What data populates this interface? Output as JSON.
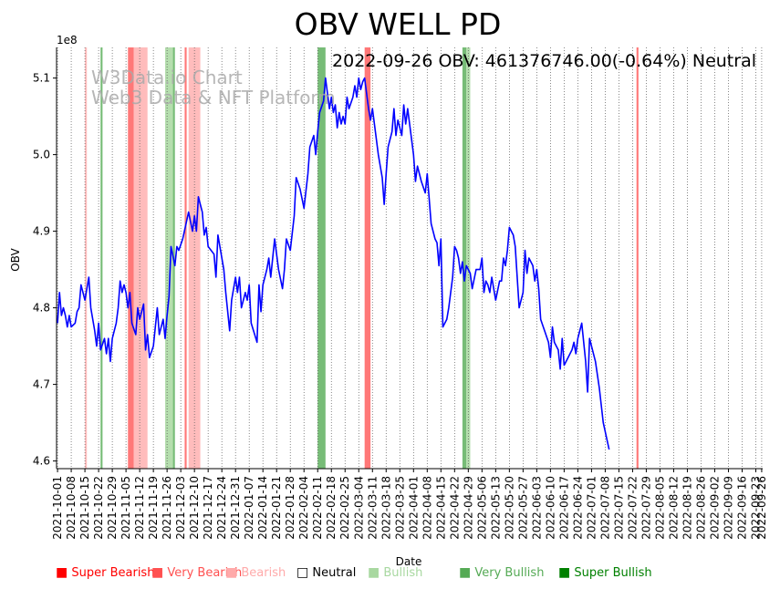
{
  "chart_data": {
    "type": "line",
    "title": "OBV WELL PD",
    "annotation": "2022-09-26 OBV: 461376746.00(-0.64%) Neutral",
    "watermark": [
      "W3Data.io Chart",
      "Web3 Data & NFT Platform"
    ],
    "xlabel": "Date",
    "ylabel": "OBV",
    "y_multiplier_label": "1e8",
    "y_unit": 100000000,
    "ylim": [
      4.59,
      5.14
    ],
    "yticks": [
      4.6,
      4.7,
      4.8,
      4.9,
      5.0,
      5.1
    ],
    "ytick_labels": [
      "4.6",
      "4.7",
      "4.8",
      "4.9",
      "5.0",
      "5.1"
    ],
    "x_start": "2021-10-01",
    "x_end": "2022-09-26",
    "xticks": [
      "2021-10-01",
      "2021-10-08",
      "2021-10-15",
      "2021-10-22",
      "2021-10-29",
      "2021-11-05",
      "2021-11-12",
      "2021-11-19",
      "2021-11-26",
      "2021-12-03",
      "2021-12-10",
      "2021-12-17",
      "2021-12-24",
      "2021-12-31",
      "2022-01-07",
      "2022-01-14",
      "2022-01-21",
      "2022-01-28",
      "2022-02-04",
      "2022-02-11",
      "2022-02-18",
      "2022-02-25",
      "2022-03-04",
      "2022-03-11",
      "2022-03-18",
      "2022-03-25",
      "2022-04-01",
      "2022-04-08",
      "2022-04-15",
      "2022-04-22",
      "2022-04-29",
      "2022-05-06",
      "2022-05-13",
      "2022-05-20",
      "2022-05-27",
      "2022-06-03",
      "2022-06-10",
      "2022-06-17",
      "2022-06-24",
      "2022-07-01",
      "2022-07-08",
      "2022-07-15",
      "2022-07-22",
      "2022-07-29",
      "2022-08-05",
      "2022-08-12",
      "2022-08-19",
      "2022-08-26",
      "2022-09-02",
      "2022-09-09",
      "2022-09-16",
      "2022-09-23",
      "2022-09-26"
    ],
    "grid": "vertical-dotted",
    "line_color": "#0000ff",
    "series": [
      {
        "points": [
          [
            "2021-10-01",
            4.78
          ],
          [
            "2021-10-02",
            4.82
          ],
          [
            "2021-10-03",
            4.79
          ],
          [
            "2021-10-04",
            4.8
          ],
          [
            "2021-10-05",
            4.79
          ],
          [
            "2021-10-06",
            4.775
          ],
          [
            "2021-10-07",
            4.79
          ],
          [
            "2021-10-08",
            4.775
          ],
          [
            "2021-10-10",
            4.78
          ],
          [
            "2021-10-11",
            4.795
          ],
          [
            "2021-10-12",
            4.8
          ],
          [
            "2021-10-13",
            4.83
          ],
          [
            "2021-10-15",
            4.81
          ],
          [
            "2021-10-17",
            4.84
          ],
          [
            "2021-10-18",
            4.8
          ],
          [
            "2021-10-20",
            4.77
          ],
          [
            "2021-10-21",
            4.75
          ],
          [
            "2021-10-22",
            4.78
          ],
          [
            "2021-10-23",
            4.745
          ],
          [
            "2021-10-25",
            4.76
          ],
          [
            "2021-10-26",
            4.74
          ],
          [
            "2021-10-27",
            4.76
          ],
          [
            "2021-10-28",
            4.73
          ],
          [
            "2021-10-29",
            4.76
          ],
          [
            "2021-10-31",
            4.78
          ],
          [
            "2021-11-01",
            4.8
          ],
          [
            "2021-11-02",
            4.835
          ],
          [
            "2021-11-03",
            4.82
          ],
          [
            "2021-11-04",
            4.83
          ],
          [
            "2021-11-05",
            4.82
          ],
          [
            "2021-11-06",
            4.8
          ],
          [
            "2021-11-07",
            4.82
          ],
          [
            "2021-11-08",
            4.78
          ],
          [
            "2021-11-10",
            4.765
          ],
          [
            "2021-11-11",
            4.8
          ],
          [
            "2021-11-12",
            4.785
          ],
          [
            "2021-11-14",
            4.805
          ],
          [
            "2021-11-15",
            4.745
          ],
          [
            "2021-11-16",
            4.765
          ],
          [
            "2021-11-17",
            4.735
          ],
          [
            "2021-11-19",
            4.75
          ],
          [
            "2021-11-21",
            4.8
          ],
          [
            "2021-11-22",
            4.765
          ],
          [
            "2021-11-24",
            4.785
          ],
          [
            "2021-11-25",
            4.76
          ],
          [
            "2021-11-26",
            4.79
          ],
          [
            "2021-11-27",
            4.815
          ],
          [
            "2021-11-28",
            4.88
          ],
          [
            "2021-11-30",
            4.855
          ],
          [
            "2021-12-01",
            4.88
          ],
          [
            "2021-12-02",
            4.875
          ],
          [
            "2021-12-04",
            4.89
          ],
          [
            "2021-12-07",
            4.925
          ],
          [
            "2021-12-09",
            4.9
          ],
          [
            "2021-12-10",
            4.92
          ],
          [
            "2021-12-11",
            4.9
          ],
          [
            "2021-12-12",
            4.945
          ],
          [
            "2021-12-14",
            4.925
          ],
          [
            "2021-12-15",
            4.895
          ],
          [
            "2021-12-16",
            4.905
          ],
          [
            "2021-12-17",
            4.88
          ],
          [
            "2021-12-20",
            4.87
          ],
          [
            "2021-12-21",
            4.84
          ],
          [
            "2021-12-22",
            4.895
          ],
          [
            "2021-12-25",
            4.85
          ],
          [
            "2021-12-26",
            4.82
          ],
          [
            "2021-12-28",
            4.77
          ],
          [
            "2021-12-29",
            4.81
          ],
          [
            "2021-12-31",
            4.84
          ],
          [
            "2022-01-01",
            4.82
          ],
          [
            "2022-01-02",
            4.84
          ],
          [
            "2022-01-03",
            4.8
          ],
          [
            "2022-01-05",
            4.82
          ],
          [
            "2022-01-06",
            4.81
          ],
          [
            "2022-01-07",
            4.83
          ],
          [
            "2022-01-08",
            4.78
          ],
          [
            "2022-01-11",
            4.755
          ],
          [
            "2022-01-12",
            4.83
          ],
          [
            "2022-01-13",
            4.795
          ],
          [
            "2022-01-14",
            4.83
          ],
          [
            "2022-01-16",
            4.85
          ],
          [
            "2022-01-17",
            4.865
          ],
          [
            "2022-01-18",
            4.84
          ],
          [
            "2022-01-20",
            4.89
          ],
          [
            "2022-01-22",
            4.85
          ],
          [
            "2022-01-24",
            4.825
          ],
          [
            "2022-01-25",
            4.85
          ],
          [
            "2022-01-26",
            4.89
          ],
          [
            "2022-01-28",
            4.875
          ],
          [
            "2022-01-30",
            4.92
          ],
          [
            "2022-01-31",
            4.97
          ],
          [
            "2022-02-02",
            4.955
          ],
          [
            "2022-02-04",
            4.93
          ],
          [
            "2022-02-06",
            4.975
          ],
          [
            "2022-02-07",
            5.01
          ],
          [
            "2022-02-09",
            5.025
          ],
          [
            "2022-02-10",
            5.0
          ],
          [
            "2022-02-11",
            5.03
          ],
          [
            "2022-02-12",
            5.055
          ],
          [
            "2022-02-14",
            5.07
          ],
          [
            "2022-02-15",
            5.1
          ],
          [
            "2022-02-16",
            5.08
          ],
          [
            "2022-02-17",
            5.06
          ],
          [
            "2022-02-18",
            5.075
          ],
          [
            "2022-02-19",
            5.055
          ],
          [
            "2022-02-20",
            5.065
          ],
          [
            "2022-02-21",
            5.035
          ],
          [
            "2022-02-22",
            5.055
          ],
          [
            "2022-02-23",
            5.04
          ],
          [
            "2022-02-24",
            5.05
          ],
          [
            "2022-02-25",
            5.04
          ],
          [
            "2022-02-26",
            5.075
          ],
          [
            "2022-02-27",
            5.06
          ],
          [
            "2022-03-01",
            5.075
          ],
          [
            "2022-03-02",
            5.09
          ],
          [
            "2022-03-03",
            5.075
          ],
          [
            "2022-03-04",
            5.1
          ],
          [
            "2022-03-05",
            5.085
          ],
          [
            "2022-03-06",
            5.095
          ],
          [
            "2022-03-07",
            5.1
          ],
          [
            "2022-03-08",
            5.08
          ],
          [
            "2022-03-09",
            5.06
          ],
          [
            "2022-03-10",
            5.045
          ],
          [
            "2022-03-11",
            5.06
          ],
          [
            "2022-03-12",
            5.04
          ],
          [
            "2022-03-14",
            5.0
          ],
          [
            "2022-03-15",
            4.985
          ],
          [
            "2022-03-16",
            4.97
          ],
          [
            "2022-03-17",
            4.935
          ],
          [
            "2022-03-18",
            4.975
          ],
          [
            "2022-03-19",
            5.01
          ],
          [
            "2022-03-20",
            5.02
          ],
          [
            "2022-03-21",
            5.03
          ],
          [
            "2022-03-22",
            5.06
          ],
          [
            "2022-03-23",
            5.025
          ],
          [
            "2022-03-24",
            5.045
          ],
          [
            "2022-03-26",
            5.025
          ],
          [
            "2022-03-27",
            5.065
          ],
          [
            "2022-03-28",
            5.04
          ],
          [
            "2022-03-29",
            5.06
          ],
          [
            "2022-04-01",
            5.0
          ],
          [
            "2022-04-02",
            4.965
          ],
          [
            "2022-04-03",
            4.985
          ],
          [
            "2022-04-05",
            4.965
          ],
          [
            "2022-04-07",
            4.95
          ],
          [
            "2022-04-08",
            4.975
          ],
          [
            "2022-04-10",
            4.91
          ],
          [
            "2022-04-12",
            4.89
          ],
          [
            "2022-04-13",
            4.885
          ],
          [
            "2022-04-14",
            4.855
          ],
          [
            "2022-04-15",
            4.89
          ],
          [
            "2022-04-16",
            4.775
          ],
          [
            "2022-04-18",
            4.785
          ],
          [
            "2022-04-19",
            4.8
          ],
          [
            "2022-04-21",
            4.84
          ],
          [
            "2022-04-22",
            4.88
          ],
          [
            "2022-04-23",
            4.875
          ],
          [
            "2022-04-24",
            4.865
          ],
          [
            "2022-04-25",
            4.845
          ],
          [
            "2022-04-26",
            4.86
          ],
          [
            "2022-04-27",
            4.835
          ],
          [
            "2022-04-28",
            4.855
          ],
          [
            "2022-04-30",
            4.845
          ],
          [
            "2022-05-01",
            4.825
          ],
          [
            "2022-05-03",
            4.85
          ],
          [
            "2022-05-04",
            4.85
          ],
          [
            "2022-05-05",
            4.85
          ],
          [
            "2022-05-06",
            4.865
          ],
          [
            "2022-05-07",
            4.82
          ],
          [
            "2022-05-08",
            4.835
          ],
          [
            "2022-05-09",
            4.83
          ],
          [
            "2022-05-10",
            4.82
          ],
          [
            "2022-05-11",
            4.84
          ],
          [
            "2022-05-12",
            4.825
          ],
          [
            "2022-05-13",
            4.81
          ],
          [
            "2022-05-15",
            4.835
          ],
          [
            "2022-05-16",
            4.835
          ],
          [
            "2022-05-17",
            4.865
          ],
          [
            "2022-05-18",
            4.855
          ],
          [
            "2022-05-19",
            4.875
          ],
          [
            "2022-05-20",
            4.905
          ],
          [
            "2022-05-22",
            4.895
          ],
          [
            "2022-05-23",
            4.88
          ],
          [
            "2022-05-25",
            4.8
          ],
          [
            "2022-05-26",
            4.81
          ],
          [
            "2022-05-27",
            4.82
          ],
          [
            "2022-05-28",
            4.875
          ],
          [
            "2022-05-29",
            4.845
          ],
          [
            "2022-05-30",
            4.865
          ],
          [
            "2022-06-01",
            4.855
          ],
          [
            "2022-06-02",
            4.835
          ],
          [
            "2022-06-03",
            4.85
          ],
          [
            "2022-06-04",
            4.825
          ],
          [
            "2022-06-05",
            4.785
          ],
          [
            "2022-06-07",
            4.77
          ],
          [
            "2022-06-09",
            4.755
          ],
          [
            "2022-06-10",
            4.735
          ],
          [
            "2022-06-11",
            4.775
          ],
          [
            "2022-06-12",
            4.755
          ],
          [
            "2022-06-14",
            4.745
          ],
          [
            "2022-06-15",
            4.72
          ],
          [
            "2022-06-16",
            4.76
          ],
          [
            "2022-06-17",
            4.725
          ],
          [
            "2022-06-19",
            4.735
          ],
          [
            "2022-06-21",
            4.745
          ],
          [
            "2022-06-22",
            4.755
          ],
          [
            "2022-06-23",
            4.74
          ],
          [
            "2022-06-24",
            4.76
          ],
          [
            "2022-06-26",
            4.78
          ],
          [
            "2022-06-28",
            4.73
          ],
          [
            "2022-06-29",
            4.69
          ],
          [
            "2022-06-30",
            4.76
          ],
          [
            "2022-07-03",
            4.73
          ],
          [
            "2022-07-05",
            4.695
          ],
          [
            "2022-07-07",
            4.65
          ],
          [
            "2022-07-10",
            4.615
          ]
        ]
      }
    ],
    "signal_bands": [
      {
        "start": "2021-10-15",
        "end": "2021-10-16",
        "signal": "Bearish"
      },
      {
        "start": "2021-10-23",
        "end": "2021-10-24",
        "signal": "Very Bullish"
      },
      {
        "start": "2021-11-06",
        "end": "2021-11-09",
        "signal": "Very Bearish"
      },
      {
        "start": "2021-11-09",
        "end": "2021-11-16",
        "signal": "Bearish"
      },
      {
        "start": "2021-11-25",
        "end": "2021-11-29",
        "signal": "Bullish"
      },
      {
        "start": "2021-11-29",
        "end": "2021-11-30",
        "signal": "Very Bullish"
      },
      {
        "start": "2021-12-05",
        "end": "2021-12-06",
        "signal": "Very Bearish"
      },
      {
        "start": "2021-12-07",
        "end": "2021-12-13",
        "signal": "Bearish"
      },
      {
        "start": "2022-02-11",
        "end": "2022-02-15",
        "signal": "Very Bullish"
      },
      {
        "start": "2022-03-07",
        "end": "2022-03-10",
        "signal": "Very Bearish"
      },
      {
        "start": "2022-04-26",
        "end": "2022-04-28",
        "signal": "Very Bullish"
      },
      {
        "start": "2022-04-28",
        "end": "2022-04-30",
        "signal": "Bullish"
      },
      {
        "start": "2022-07-24",
        "end": "2022-07-25",
        "signal": "Very Bearish"
      }
    ]
  },
  "legend": [
    {
      "label": "Super Bearish",
      "color": "#ff0000",
      "symbol": "■"
    },
    {
      "label": "Very Bearish",
      "color": "#ff5050",
      "symbol": "■"
    },
    {
      "label": "Bearish",
      "color": "#ffaaaa",
      "symbol": "■"
    },
    {
      "label": "Neutral",
      "color": "#000000",
      "symbol": "□"
    },
    {
      "label": "Bullish",
      "color": "#a8d8a0",
      "symbol": "■"
    },
    {
      "label": "Very Bullish",
      "color": "#55aa55",
      "symbol": "■"
    },
    {
      "label": "Super Bullish",
      "color": "#008000",
      "symbol": "■"
    }
  ],
  "signal_colors": {
    "Super Bearish": "#ff0000",
    "Very Bearish": "#ff6060",
    "Bearish": "#ffb0b0",
    "Bullish": "#a8d8a0",
    "Very Bullish": "#5fb05f",
    "Super Bullish": "#008000"
  }
}
